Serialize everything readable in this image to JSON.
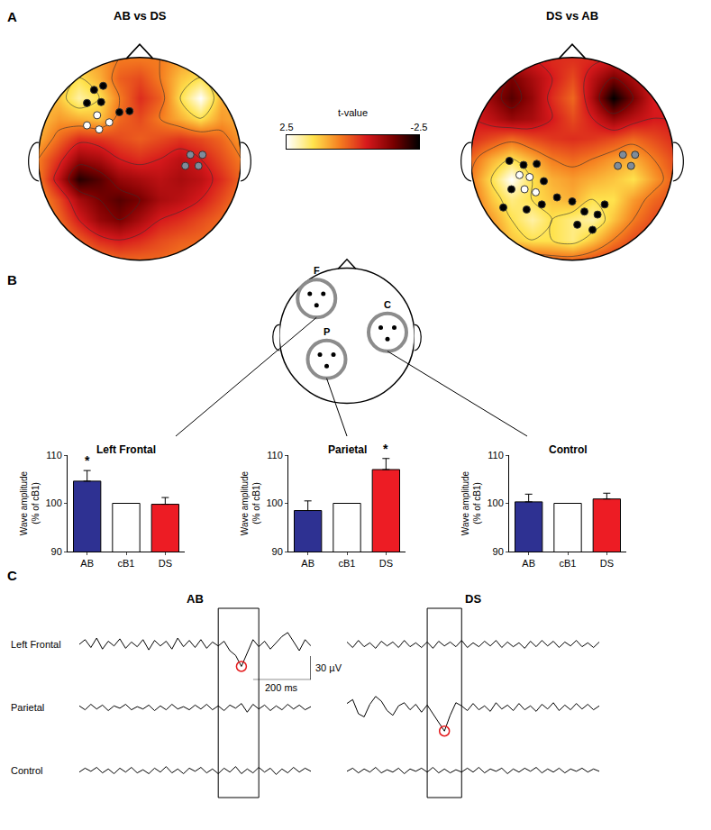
{
  "panel_labels": [
    "A",
    "B",
    "C"
  ],
  "chart_data": [
    {
      "type": "heatmap",
      "title": "AB vs DS",
      "x": [
        -1,
        -0.8,
        -0.6,
        -0.4,
        -0.2,
        0,
        0.2,
        0.4,
        0.6,
        0.8,
        1
      ],
      "y": [
        -1,
        -0.8,
        -0.6,
        -0.4,
        -0.2,
        0,
        0.2,
        0.4,
        0.6,
        0.8,
        1
      ],
      "z": [
        [
          0.5,
          0.5,
          0.5,
          0.5,
          0.3,
          0.3,
          0.3,
          0.5,
          0.5,
          0.5,
          0.5
        ],
        [
          0.8,
          0.6,
          0.2,
          -0.3,
          -0.5,
          -0.3,
          0,
          0.2,
          0.3,
          0.5,
          0.8
        ],
        [
          1.0,
          0.3,
          -0.5,
          -1.2,
          -1.5,
          -1.0,
          -0.5,
          -0.3,
          0,
          0.3,
          0.8
        ],
        [
          0.8,
          0,
          -1.0,
          -1.5,
          -1.8,
          -1.5,
          -1.0,
          -0.8,
          -0.5,
          0,
          0.5
        ],
        [
          0.5,
          -0.8,
          -2.2,
          -1.8,
          -1.2,
          -1.0,
          -0.8,
          -1.0,
          -0.8,
          -0.3,
          0.3
        ],
        [
          0.5,
          -0.3,
          -1.2,
          -1.0,
          -0.5,
          -0.3,
          -0.5,
          -0.8,
          -0.5,
          0,
          0.5
        ],
        [
          1.0,
          0.3,
          -0.3,
          -0.2,
          0,
          0.2,
          0,
          -0.2,
          0,
          0.3,
          0.8
        ],
        [
          1.2,
          0.8,
          1.0,
          1.2,
          0.3,
          0,
          0.5,
          1.0,
          1.5,
          0.8,
          1.0
        ],
        [
          1.0,
          1.2,
          2.0,
          1.5,
          0.5,
          -0.3,
          0.2,
          1.5,
          2.5,
          1.0,
          0.8
        ],
        [
          1.0,
          1.2,
          1.5,
          1.0,
          0.2,
          0,
          0.5,
          1.2,
          1.5,
          1.0,
          1.0
        ],
        [
          1.0,
          1.0,
          1.0,
          0.8,
          0.5,
          0.5,
          0.5,
          0.8,
          1.0,
          1.0,
          1.0
        ]
      ],
      "tick_labels": false,
      "markers": [
        {
          "color": "#000000",
          "x": [
            -0.45,
            -0.36,
            -0.52,
            -0.38,
            -0.2,
            -0.1
          ],
          "y": [
            0.68,
            0.72,
            0.55,
            0.56,
            0.46,
            0.47
          ]
        },
        {
          "color": "#ffffff",
          "x": [
            -0.42,
            -0.52,
            -0.4,
            -0.3
          ],
          "y": [
            0.43,
            0.33,
            0.29,
            0.36
          ]
        },
        {
          "color": "#7f8c9a",
          "x": [
            0.5,
            0.62,
            0.45,
            0.58
          ],
          "y": [
            0.04,
            0.04,
            -0.07,
            -0.07
          ]
        }
      ]
    },
    {
      "type": "heatmap",
      "title": "DS vs AB",
      "x": [
        -1,
        -0.8,
        -0.6,
        -0.4,
        -0.2,
        0,
        0.2,
        0.4,
        0.6,
        0.8,
        1
      ],
      "y": [
        -1,
        -0.8,
        -0.6,
        -0.4,
        -0.2,
        0,
        0.2,
        0.4,
        0.6,
        0.8,
        1
      ],
      "z": [
        [
          -0.3,
          -0.3,
          -0.2,
          0,
          0.2,
          0.2,
          0,
          -0.3,
          -0.3,
          -0.3,
          -0.3
        ],
        [
          0,
          0.5,
          1.2,
          1.5,
          1.5,
          1.8,
          1.2,
          0.5,
          0,
          -0.3,
          -0.5
        ],
        [
          0.3,
          0.8,
          1.5,
          2.0,
          1.5,
          1.8,
          2.0,
          1.2,
          0.5,
          0,
          -0.3
        ],
        [
          0.3,
          1.2,
          1.8,
          1.5,
          1.2,
          1.0,
          1.5,
          1.5,
          0.8,
          0.3,
          0
        ],
        [
          0.5,
          1.5,
          2.5,
          1.5,
          1.0,
          0.8,
          1.0,
          1.2,
          1.5,
          0.8,
          0.2
        ],
        [
          0.3,
          1.0,
          1.5,
          1.0,
          0.5,
          0.3,
          0.5,
          0.8,
          1.0,
          0.5,
          0
        ],
        [
          -0.3,
          0,
          0.3,
          0,
          -0.2,
          -0.3,
          -0.2,
          0,
          0.3,
          0,
          -0.3
        ],
        [
          -0.5,
          -0.8,
          -1.2,
          -1.0,
          -0.5,
          0,
          -0.5,
          -1.2,
          -0.8,
          -0.5,
          -0.5
        ],
        [
          -0.5,
          -1.2,
          -1.8,
          -1.2,
          -0.3,
          0.3,
          -1.0,
          -2.5,
          -1.5,
          -0.5,
          -0.3
        ],
        [
          -0.5,
          -1.0,
          -1.5,
          -1.0,
          -0.5,
          0,
          -0.8,
          -1.5,
          -1.0,
          -0.5,
          -0.3
        ],
        [
          -0.5,
          -0.5,
          -0.5,
          -0.5,
          -0.3,
          -0.3,
          -0.3,
          -0.5,
          -0.5,
          -0.5,
          -0.5
        ]
      ],
      "tick_labels": false,
      "markers": [
        {
          "color": "#000000",
          "x": [
            -0.62,
            -0.48,
            -0.35,
            -0.6,
            -0.28,
            -0.68,
            -0.45,
            -0.3,
            -0.15,
            0.0,
            0.12,
            0.25,
            0.32,
            0.05,
            0.2
          ],
          "y": [
            -0.02,
            -0.06,
            -0.05,
            -0.3,
            -0.22,
            -0.48,
            -0.5,
            -0.45,
            -0.38,
            -0.42,
            -0.52,
            -0.55,
            -0.45,
            -0.65,
            -0.7
          ]
        },
        {
          "color": "#ffffff",
          "x": [
            -0.52,
            -0.42,
            -0.47,
            -0.36
          ],
          "y": [
            -0.16,
            -0.18,
            -0.3,
            -0.33
          ]
        },
        {
          "color": "#7f8c9a",
          "x": [
            0.5,
            0.62,
            0.45,
            0.58
          ],
          "y": [
            0.04,
            0.04,
            -0.07,
            -0.07
          ]
        }
      ]
    },
    {
      "type": "colorbar",
      "title": "t-value",
      "xlim": [
        2.5,
        -2.5
      ],
      "xticks": [
        2.5,
        -2.5
      ],
      "values": [
        2.5,
        2.0,
        1.5,
        1.0,
        0.5,
        0,
        -0.5,
        -1.0,
        -1.5,
        -2.0,
        -2.5
      ]
    },
    {
      "type": "diagram",
      "regions": [
        {
          "label": "F",
          "x": -0.45,
          "y": 0.55
        },
        {
          "label": "P",
          "x": -0.3,
          "y": -0.35
        },
        {
          "label": "C",
          "x": 0.6,
          "y": 0.05
        }
      ]
    },
    {
      "type": "bar",
      "title": "Left Frontal",
      "categories": [
        "AB",
        "cB1",
        "DS"
      ],
      "values": [
        104.6,
        100,
        99.8
      ],
      "errors": [
        2.2,
        null,
        1.4
      ],
      "colors": [
        "#2e3192",
        "#ffffff",
        "#ed1c24"
      ],
      "ylim": [
        90,
        110
      ],
      "yticks": [
        90,
        100,
        110
      ],
      "ylabel": [
        "Wave amplitude",
        "(% of cB1)"
      ],
      "annotations": [
        {
          "category": "AB",
          "text": "*"
        }
      ]
    },
    {
      "type": "bar",
      "title": "Parietal",
      "categories": [
        "AB",
        "cB1",
        "DS"
      ],
      "values": [
        98.5,
        100,
        107
      ],
      "errors": [
        2.0,
        null,
        2.3
      ],
      "colors": [
        "#2e3192",
        "#ffffff",
        "#ed1c24"
      ],
      "ylim": [
        90,
        110
      ],
      "yticks": [
        90,
        100,
        110
      ],
      "ylabel": [
        "Wave amplitude",
        "(% of cB1)"
      ],
      "annotations": [
        {
          "category": "DS",
          "text": "*"
        }
      ]
    },
    {
      "type": "bar",
      "title": "Control",
      "categories": [
        "AB",
        "cB1",
        "DS"
      ],
      "values": [
        100.3,
        100,
        100.9
      ],
      "errors": [
        1.6,
        null,
        1.2
      ],
      "colors": [
        "#2e3192",
        "#ffffff",
        "#ed1c24"
      ],
      "ylim": [
        90,
        110
      ],
      "yticks": [
        90,
        100,
        110
      ],
      "ylabel": [
        "Wave amplitude",
        "(% of cB1)"
      ]
    },
    {
      "type": "line",
      "row_labels": [
        "Left Frontal",
        "Parietal",
        "Control"
      ],
      "ylim": [
        -40,
        40
      ],
      "tick_labels": false,
      "color": "#000000",
      "scale_bar": {
        "x": 200,
        "x_label": "200 ms",
        "y": 30,
        "y_label": "30 µV"
      },
      "columns": [
        {
          "title": "AB",
          "xlim": [
            0,
            800
          ],
          "window": [
            480,
            620
          ],
          "highlight": {
            "series": 0,
            "x": 560,
            "color": "#e41a1c"
          },
          "x": [
            0,
            20,
            40,
            60,
            80,
            100,
            120,
            140,
            160,
            180,
            200,
            220,
            240,
            260,
            280,
            300,
            320,
            340,
            360,
            380,
            400,
            420,
            440,
            460,
            480,
            500,
            520,
            540,
            560,
            580,
            600,
            620,
            640,
            660,
            680,
            700,
            720,
            740,
            760,
            780,
            800
          ],
          "series": [
            {
              "values": [
                0,
                6,
                -4,
                8,
                -6,
                4,
                -2,
                7,
                -5,
                3,
                -3,
                6,
                -7,
                5,
                -2,
                4,
                -6,
                8,
                -3,
                5,
                -4,
                6,
                -5,
                3,
                -2,
                4,
                -8,
                -14,
                -28,
                -10,
                6,
                -3,
                4,
                -6,
                2,
                10,
                15,
                4,
                -8,
                6,
                -2
              ]
            },
            {
              "values": [
                2,
                -3,
                4,
                -2,
                3,
                -4,
                2,
                -1,
                4,
                -3,
                1,
                -2,
                3,
                -4,
                2,
                -3,
                4,
                -2,
                1,
                -3,
                3,
                -2,
                4,
                -3,
                2,
                -4,
                3,
                -1,
                5,
                -6,
                4,
                -2,
                3,
                -4,
                2,
                -3,
                4,
                -2,
                3,
                -3,
                1
              ]
            },
            {
              "values": [
                -2,
                3,
                -1,
                4,
                -3,
                2,
                -4,
                3,
                -2,
                4,
                -3,
                1,
                -4,
                3,
                -2,
                5,
                -3,
                2,
                -4,
                3,
                -1,
                4,
                -3,
                2,
                -4,
                3,
                -2,
                5,
                -4,
                2,
                -3,
                4,
                -2,
                3,
                -5,
                2,
                -3,
                4,
                -2,
                3,
                -1
              ]
            }
          ]
        },
        {
          "title": "DS",
          "xlim": [
            0,
            880
          ],
          "window": [
            280,
            400
          ],
          "highlight": {
            "series": 1,
            "x": 340,
            "color": "#e41a1c"
          },
          "x": [
            0,
            20,
            40,
            60,
            80,
            100,
            120,
            140,
            160,
            180,
            200,
            220,
            240,
            260,
            280,
            300,
            320,
            340,
            360,
            380,
            400,
            420,
            440,
            460,
            480,
            500,
            520,
            540,
            560,
            580,
            600,
            620,
            640,
            660,
            680,
            700,
            720,
            740,
            760,
            780,
            800,
            820,
            840,
            860,
            880
          ],
          "series": [
            {
              "values": [
                3,
                -4,
                5,
                -3,
                2,
                -5,
                4,
                -2,
                3,
                -4,
                5,
                -3,
                2,
                -4,
                3,
                -5,
                4,
                -2,
                3,
                -3,
                5,
                -4,
                2,
                -3,
                4,
                -2,
                5,
                -4,
                3,
                -3,
                2,
                -5,
                4,
                -3,
                5,
                -2,
                4,
                -4,
                3,
                -2,
                5,
                -3,
                2,
                -4,
                3
              ]
            },
            {
              "values": [
                5,
                10,
                -8,
                -12,
                4,
                14,
                8,
                -4,
                -10,
                2,
                6,
                -3,
                4,
                -6,
                3,
                -8,
                -20,
                -30,
                -10,
                6,
                2,
                -4,
                5,
                -3,
                2,
                -5,
                6,
                -2,
                3,
                -4,
                5,
                -3,
                2,
                -5,
                4,
                -2,
                6,
                -4,
                3,
                -3,
                5,
                -2,
                4,
                -3,
                2
              ]
            },
            {
              "values": [
                -1,
                3,
                -3,
                2,
                -2,
                4,
                -3,
                1,
                -2,
                3,
                -4,
                2,
                -1,
                3,
                -2,
                4,
                -3,
                2,
                -3,
                1,
                -2,
                3,
                -2,
                4,
                -3,
                2,
                -1,
                3,
                -4,
                2,
                -2,
                3,
                -1,
                4,
                -3,
                2,
                -2,
                3,
                -3,
                2,
                -1,
                3,
                -2,
                2,
                -1
              ]
            }
          ]
        }
      ]
    }
  ]
}
